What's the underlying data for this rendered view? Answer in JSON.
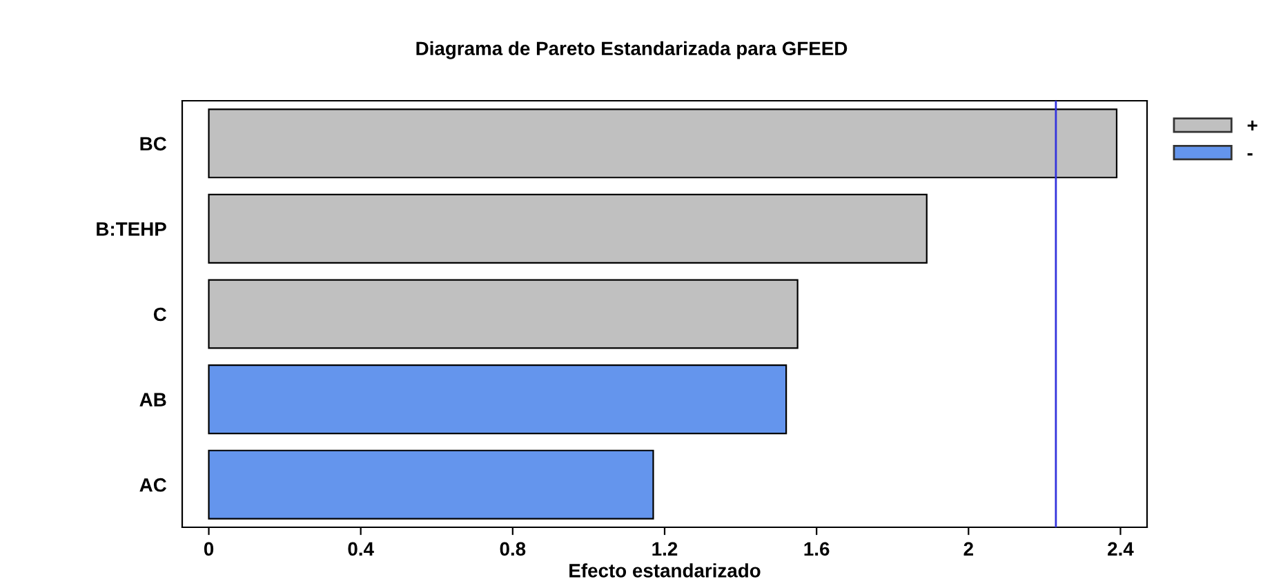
{
  "chart_data": {
    "type": "bar",
    "orientation": "horizontal",
    "title": "Diagrama de Pareto Estandarizada para GFEED",
    "xlabel": "Efecto estandarizado",
    "categories": [
      "BC",
      "B:TEHP",
      "C",
      "AB",
      "AC"
    ],
    "series": [
      {
        "name": "+",
        "color": "#c0c0c0",
        "values": [
          2.39,
          1.89,
          1.55,
          null,
          null
        ]
      },
      {
        "name": "-",
        "color": "#6495ed",
        "values": [
          null,
          null,
          null,
          1.52,
          1.17
        ]
      }
    ],
    "xlim": [
      -0.07,
      2.47
    ],
    "xticks": [
      0,
      0.4,
      0.8,
      1.2,
      1.6,
      2,
      2.4
    ],
    "ref_lines": [
      {
        "axis": "x",
        "value": 2.23,
        "color": "#3333dd"
      }
    ],
    "grid": false,
    "legend": "top right"
  }
}
